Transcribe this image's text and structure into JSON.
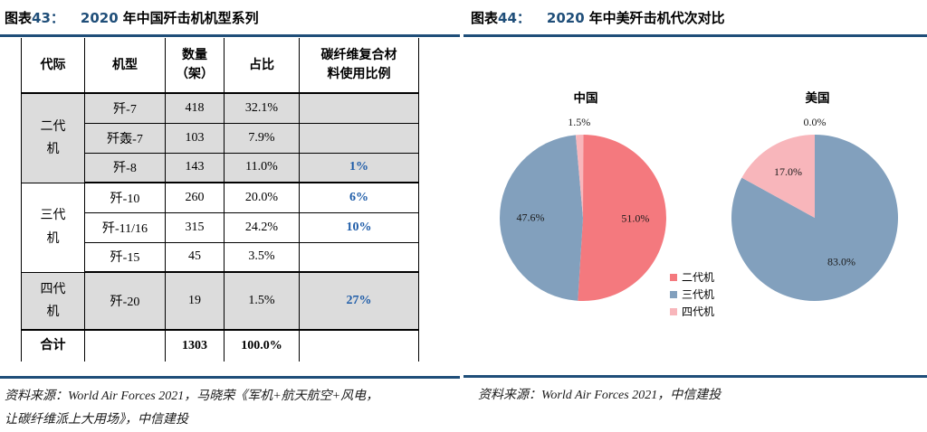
{
  "colors": {
    "accent_blue": "#1F4E79",
    "table_value_blue": "#1E5CA8",
    "row_shade_gray": "#DCDCDC",
    "pie_red": "#F4797E",
    "pie_blue": "#82A0BD",
    "pie_pink": "#F8B6BB"
  },
  "left": {
    "title": {
      "prefix": "图表",
      "num": "43：",
      "year": "2020",
      "rest": "年中国歼击机机型系列"
    },
    "table": {
      "headers": [
        "代际",
        "机型",
        "数量\n（架）",
        "占比",
        "碳纤维复合材\n料使用比例"
      ],
      "row_groups": [
        {
          "gen": "二代\n机",
          "shade": true,
          "tall": false,
          "rows": [
            [
              "歼-7",
              "418",
              "32.1%",
              ""
            ],
            [
              "歼轰-7",
              "103",
              "7.9%",
              ""
            ],
            [
              "歼-8",
              "143",
              "11.0%",
              "1%"
            ]
          ]
        },
        {
          "gen": "三代\n机",
          "shade": false,
          "tall": false,
          "rows": [
            [
              "歼-10",
              "260",
              "20.0%",
              "6%"
            ],
            [
              "歼-11/16",
              "315",
              "24.2%",
              "10%"
            ],
            [
              "歼-15",
              "45",
              "3.5%",
              ""
            ]
          ]
        },
        {
          "gen": "四代\n机",
          "shade": true,
          "tall": true,
          "rows": [
            [
              "歼-20",
              "19",
              "1.5%",
              "27%"
            ]
          ]
        }
      ],
      "total_row": {
        "cells": [
          "合计",
          "",
          "1303",
          "100.0%",
          ""
        ]
      }
    },
    "source_line1": "资料来源：World Air Forces 2021，马晓荣《军机+航天航空+风电，",
    "source_line2": "让碳纤维派上大用场》，中信建投"
  },
  "right": {
    "title": {
      "prefix": "图表",
      "num": "44：",
      "year": "2020",
      "rest": "年中美歼击机代次对比"
    },
    "source": "资料来源：World Air Forces 2021，中信建投"
  },
  "legend": {
    "items": [
      {
        "label": "二代机",
        "color": "#F4797E"
      },
      {
        "label": "三代机",
        "color": "#82A0BD"
      },
      {
        "label": "四代机",
        "color": "#F8B6BB"
      }
    ]
  },
  "chart_data": [
    {
      "type": "table",
      "title": "2020 年中国歼击机机型系列",
      "columns": [
        "代际",
        "机型",
        "数量（架）",
        "占比",
        "碳纤维复合材料使用比例"
      ],
      "rows": [
        [
          "二代机",
          "歼-7",
          418,
          "32.1%",
          ""
        ],
        [
          "二代机",
          "歼轰-7",
          103,
          "7.9%",
          ""
        ],
        [
          "二代机",
          "歼-8",
          143,
          "11.0%",
          "1%"
        ],
        [
          "三代机",
          "歼-10",
          260,
          "20.0%",
          "6%"
        ],
        [
          "三代机",
          "歼-11/16",
          315,
          "24.2%",
          "10%"
        ],
        [
          "三代机",
          "歼-15",
          45,
          "3.5%",
          ""
        ],
        [
          "四代机",
          "歼-20",
          19,
          "1.5%",
          "27%"
        ],
        [
          "合计",
          "",
          1303,
          "100.0%",
          ""
        ]
      ]
    },
    {
      "type": "pie",
      "title": "中国",
      "labels": [
        "二代机",
        "三代机",
        "四代机"
      ],
      "values": [
        51.0,
        47.6,
        1.5
      ],
      "colors": [
        "#F4797E",
        "#82A0BD",
        "#F8B6BB"
      ],
      "start_angle_deg": 0,
      "direction": "clockwise",
      "legend_position": "right-bottom"
    },
    {
      "type": "pie",
      "title": "美国",
      "labels": [
        "二代机",
        "三代机",
        "四代机"
      ],
      "values": [
        0.0,
        83.0,
        17.0
      ],
      "colors": [
        "#F4797E",
        "#82A0BD",
        "#F8B6BB"
      ],
      "start_angle_deg": 0,
      "direction": "clockwise",
      "legend_position": "right-bottom"
    }
  ]
}
